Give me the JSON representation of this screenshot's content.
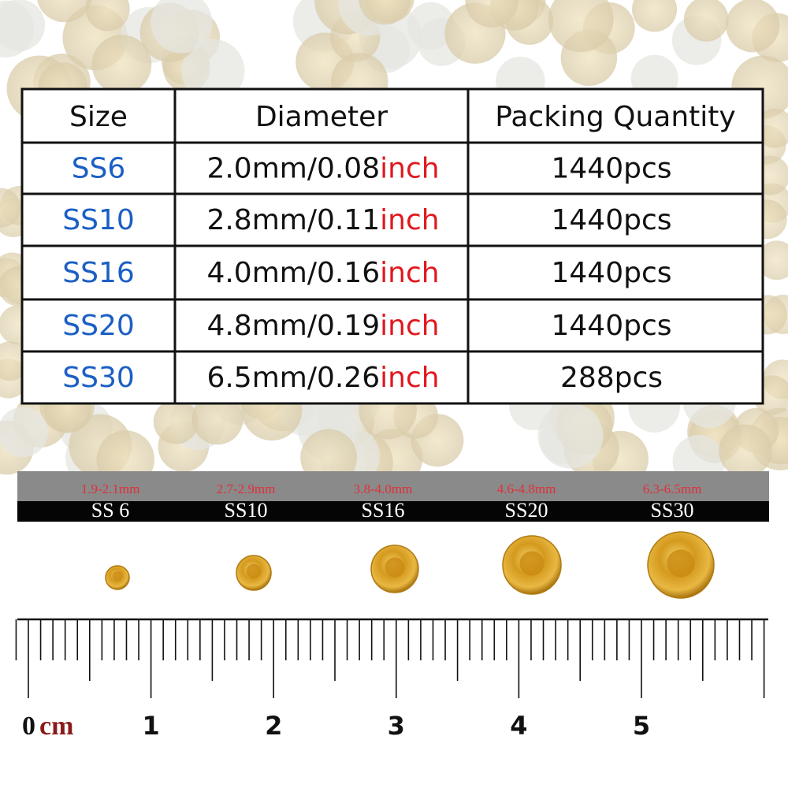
{
  "table": {
    "header": [
      "Size",
      "Diameter",
      "Packing Quantity"
    ],
    "rows": [
      {
        "size": "SS6",
        "diameter": "2.0mm/0.08",
        "unit": "inch",
        "quantity": "1440pcs"
      },
      {
        "size": "SS10",
        "diameter": "2.8mm/0.11",
        "unit": "inch",
        "quantity": "1440pcs"
      },
      {
        "size": "SS16",
        "diameter": "4.0mm/0.16",
        "unit": "inch",
        "quantity": "1440pcs"
      },
      {
        "size": "SS20",
        "diameter": "4.8mm/0.19",
        "unit": "inch",
        "quantity": "1440pcs"
      },
      {
        "size": "SS30",
        "diameter": "6.5mm/0.26",
        "unit": "inch",
        "quantity": "288pcs"
      }
    ]
  },
  "strip": {
    "ranges": [
      "1.9-2.1mm",
      "2.7-2.9mm",
      "3.8-4.0mm",
      "4.6-4.8mm",
      "6.3-6.5mm"
    ],
    "sizes": [
      "SS 6",
      "SS10",
      "SS16",
      "SS20",
      "SS30"
    ]
  },
  "ruler": {
    "zero": "0",
    "unit": "cm",
    "numbers": [
      "1",
      "2",
      "3",
      "4",
      "5"
    ]
  }
}
